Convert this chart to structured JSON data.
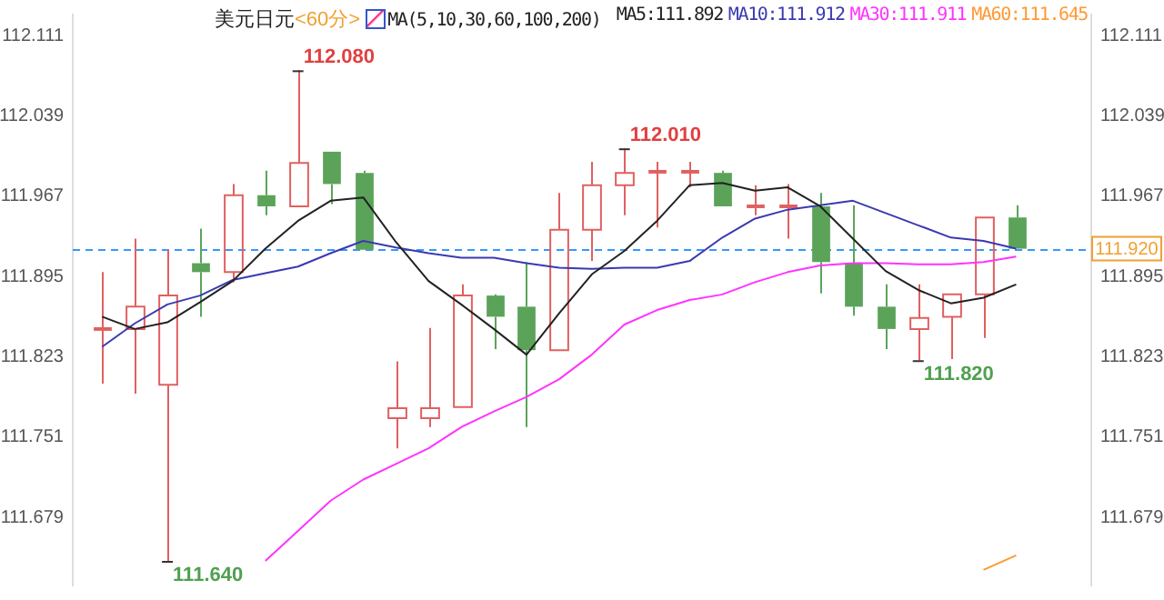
{
  "chart_data": {
    "type": "candlestick",
    "title": "美元日元",
    "subtitle": "<60分>",
    "categories": [
      null,
      null,
      null,
      null,
      null,
      null,
      null,
      null,
      null,
      null,
      null,
      null,
      null,
      null,
      null,
      null,
      null,
      null,
      null,
      null,
      null,
      null,
      null,
      null,
      null,
      null,
      null,
      null,
      null
    ],
    "ohlc": [
      [
        111.848,
        111.899,
        111.799,
        111.848
      ],
      [
        111.848,
        111.929,
        111.79,
        111.868
      ],
      [
        111.798,
        111.919,
        111.64,
        111.878
      ],
      [
        111.907,
        111.938,
        111.859,
        111.899
      ],
      [
        111.899,
        111.978,
        111.89,
        111.968
      ],
      [
        111.968,
        111.99,
        111.95,
        111.958
      ],
      [
        111.958,
        112.08,
        111.958,
        111.997
      ],
      [
        112.007,
        112.007,
        111.96,
        111.978
      ],
      [
        111.988,
        111.99,
        111.919,
        111.919
      ],
      [
        111.768,
        111.819,
        111.741,
        111.777
      ],
      [
        111.768,
        111.849,
        111.76,
        111.777
      ],
      [
        111.778,
        111.888,
        111.778,
        111.878
      ],
      [
        111.878,
        111.879,
        111.83,
        111.859
      ],
      [
        111.868,
        111.908,
        111.76,
        111.829
      ],
      [
        111.829,
        111.97,
        111.829,
        111.937
      ],
      [
        111.937,
        111.998,
        111.909,
        111.977
      ],
      [
        111.977,
        112.01,
        111.95,
        111.988
      ],
      [
        111.989,
        111.998,
        111.939,
        111.989
      ],
      [
        111.989,
        111.998,
        111.975,
        111.989
      ],
      [
        111.988,
        111.99,
        111.958,
        111.958
      ],
      [
        111.958,
        111.977,
        111.95,
        111.958
      ],
      [
        111.958,
        111.978,
        111.929,
        111.958
      ],
      [
        111.958,
        111.97,
        111.88,
        111.908
      ],
      [
        111.907,
        111.959,
        111.86,
        111.868
      ],
      [
        111.868,
        111.888,
        111.83,
        111.848
      ],
      [
        111.848,
        111.888,
        111.82,
        111.858
      ],
      [
        111.859,
        111.879,
        111.821,
        111.879
      ],
      [
        111.879,
        111.948,
        111.84,
        111.948
      ],
      [
        111.948,
        111.959,
        111.92,
        111.92
      ]
    ],
    "colors": [
      "#e06060",
      "#e06060",
      "#e06060",
      "#5ca35a",
      "#e06060",
      "#5ca35a",
      "#e06060",
      "#5ca35a",
      "#5ca35a",
      "#e06060",
      "#e06060",
      "#e06060",
      "#5ca35a",
      "#5ca35a",
      "#e06060",
      "#e06060",
      "#e06060",
      "#e06060",
      "#e06060",
      "#5ca35a",
      "#e06060",
      "#e06060",
      "#5ca35a",
      "#5ca35a",
      "#5ca35a",
      "#e06060",
      "#e06060",
      "#e06060",
      "#5ca35a"
    ],
    "series": [
      {
        "name": "MA5:111.892",
        "type": "line",
        "color": "#222222",
        "values": [
          111.859,
          111.848,
          111.854,
          111.872,
          111.891,
          111.92,
          111.945,
          111.963,
          111.966,
          111.926,
          111.891,
          111.87,
          111.848,
          111.825,
          111.862,
          111.897,
          111.918,
          111.945,
          111.977,
          111.979,
          111.972,
          111.975,
          111.958,
          111.929,
          111.9,
          111.883,
          111.871,
          111.876,
          111.888
        ]
      },
      {
        "name": "MA10:111.912",
        "type": "line",
        "color": "#3a3ab0",
        "values": [
          111.832,
          111.853,
          111.87,
          111.878,
          111.892,
          111.898,
          111.904,
          111.916,
          111.927,
          111.921,
          111.916,
          111.912,
          111.912,
          111.907,
          111.903,
          111.902,
          111.903,
          111.903,
          111.909,
          111.93,
          111.947,
          111.955,
          111.959,
          111.963,
          111.952,
          111.941,
          111.93,
          111.927,
          111.92
        ]
      },
      {
        "name": "MA30:111.911",
        "type": "line",
        "color": "#ff33ff",
        "values": [
          null,
          null,
          null,
          null,
          null,
          111.64,
          111.667,
          111.694,
          111.713,
          111.727,
          111.741,
          111.76,
          111.774,
          111.787,
          111.803,
          111.825,
          111.852,
          111.865,
          111.874,
          111.879,
          111.89,
          111.899,
          111.905,
          111.907,
          111.907,
          111.906,
          111.906,
          111.908,
          111.913
        ]
      },
      {
        "name": "MA60:111.645",
        "type": "line",
        "color": "#ff9933",
        "values": [
          null,
          null,
          null,
          null,
          null,
          null,
          null,
          null,
          null,
          null,
          null,
          null,
          null,
          null,
          null,
          null,
          null,
          null,
          null,
          null,
          null,
          null,
          null,
          null,
          null,
          null,
          null,
          111.632,
          111.645
        ]
      }
    ],
    "ylim": [
      111.618,
      112.13
    ],
    "yticks": [
      112.111,
      112.039,
      111.967,
      111.895,
      111.823,
      111.751,
      111.679
    ],
    "y2lim": [
      111.618,
      112.13
    ],
    "y2ticks": [
      112.111,
      112.039,
      111.967,
      111.895,
      111.823,
      111.751,
      111.679
    ],
    "ref_lines": [
      {
        "axis": "y2",
        "value": 111.92,
        "label": "111.920",
        "color": "#3399ff",
        "line_style": "dashed"
      }
    ],
    "legend": "top right",
    "grid": false,
    "marker": "none",
    "value_labels": [
      null,
      null,
      "111.640",
      null,
      null,
      null,
      "112.080",
      null,
      null,
      null,
      null,
      null,
      null,
      null,
      null,
      null,
      "112.010",
      null,
      null,
      null,
      null,
      null,
      null,
      null,
      null,
      "111.820",
      null,
      null,
      null
    ],
    "annotations": [
      "MA(5,10,30,60,100,200)"
    ]
  }
}
